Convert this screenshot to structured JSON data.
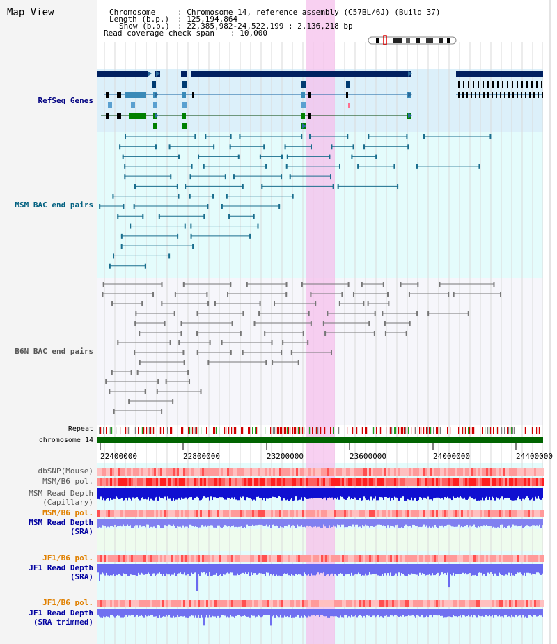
{
  "title": "Map View",
  "header": {
    "chromosome_label": "Chromosome",
    "chromosome_value": ": Chromosome 14, reference assembly (C57BL/6J) (Build 37)",
    "length_label": "Length (b.p.)",
    "length_value": ": 125,194,864",
    "show_label": "Show (b.p.)",
    "show_value": ": 22,385,982-24,522,199 : 2,136,218 bp",
    "read_cov_label": "Read coverage check span",
    "read_cov_value": ": 10,000"
  },
  "tracks": {
    "refseq": "RefSeq Genes",
    "msm_bac": "MSM BAC end pairs",
    "b6n_bac": "B6N BAC end pairs",
    "repeat": "Repeat",
    "chromosome": "chromosome 14",
    "dbsnp": "dbSNP(Mouse)",
    "msm_b6_pol": "MSM/B6 pol.",
    "msm_read_depth_cap_1": "MSM Read Depth",
    "msm_read_depth_cap_2": "(Capillary)",
    "msm_b6_pol_2": "MSM/B6 pol.",
    "msm_read_depth_sra_1": "MSM Read Depth",
    "msm_read_depth_sra_2": "(SRA)",
    "jf1_b6_pol": "JF1/B6 pol.",
    "jf1_read_depth_sra_1": "JF1 Read Depth",
    "jf1_read_depth_sra_2": "(SRA)",
    "jf1_b6_pol_2": "JF1/B6 pol.",
    "jf1_read_depth_trim_1": "JF1 Read Depth",
    "jf1_read_depth_trim_2": "(SRA trimmed)"
  },
  "axis_ticks": [
    "22400000",
    "22800000",
    "23200000",
    "23600000",
    "24000000",
    "24400000"
  ],
  "colors": {
    "refseq_label": "#000080",
    "msm_label": "#005f7f",
    "b6n_label": "#555555",
    "pol_label": "#e08000",
    "depth_label": "#0000a0",
    "highlight": "#f6c0ec",
    "chromosome_bar": "#006400"
  }
}
